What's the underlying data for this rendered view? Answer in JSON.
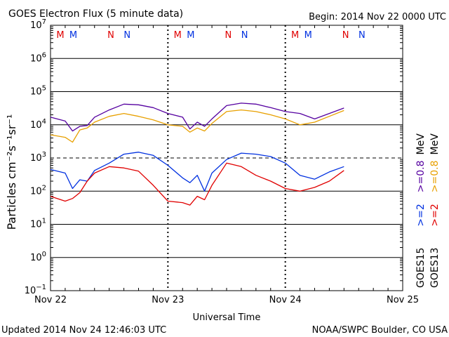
{
  "title": "GOES Electron Flux (5 minute data)",
  "begin": "Begin: 2014 Nov 22 0000 UTC",
  "updated": "Updated 2014 Nov 24 12:46:03 UTC",
  "credit": "NOAA/SWPC Boulder, CO USA",
  "colors": {
    "goes15_low": "#5500a0",
    "goes13_low": "#e8a000",
    "goes15_high": "#0030e0",
    "goes13_high": "#e00000",
    "marker_m": "#e00000",
    "marker_n": "#0030e0"
  },
  "chart_data": {
    "type": "line",
    "title": "GOES Electron Flux (5 minute data)",
    "xlabel": "Universal Time",
    "ylabel": "Particles cm⁻²s⁻¹sr⁻¹",
    "y_scale": "log",
    "ylim": [
      0.1,
      10000000
    ],
    "xlim": [
      "2014-11-22 00:00",
      "2014-11-25 00:00"
    ],
    "x_ticks": [
      "Nov 22",
      "Nov 23",
      "Nov 24",
      "Nov 25"
    ],
    "y_ticks": [
      {
        "base": "10",
        "exp": "7"
      },
      {
        "base": "10",
        "exp": "6"
      },
      {
        "base": "10",
        "exp": "5"
      },
      {
        "base": "10",
        "exp": "4"
      },
      {
        "base": "10",
        "exp": "3"
      },
      {
        "base": "10",
        "exp": "2"
      },
      {
        "base": "10",
        "exp": "1"
      },
      {
        "base": "10",
        "exp": "0"
      },
      {
        "base": "10",
        "exp": "−1"
      }
    ],
    "alert_threshold": 1000,
    "markers": [
      {
        "label": "M",
        "time": "2014-11-22 02:00",
        "color": "marker_m"
      },
      {
        "label": "M",
        "time": "2014-11-22 04:40",
        "color": "marker_n"
      },
      {
        "label": "N",
        "time": "2014-11-22 12:20",
        "color": "marker_m"
      },
      {
        "label": "N",
        "time": "2014-11-22 15:40",
        "color": "marker_n"
      },
      {
        "label": "M",
        "time": "2014-11-23 02:00",
        "color": "marker_m"
      },
      {
        "label": "M",
        "time": "2014-11-23 04:40",
        "color": "marker_n"
      },
      {
        "label": "N",
        "time": "2014-11-23 12:20",
        "color": "marker_m"
      },
      {
        "label": "N",
        "time": "2014-11-23 15:40",
        "color": "marker_n"
      },
      {
        "label": "M",
        "time": "2014-11-24 02:00",
        "color": "marker_m"
      },
      {
        "label": "M",
        "time": "2014-11-24 04:40",
        "color": "marker_n"
      },
      {
        "label": "N",
        "time": "2014-11-24 12:20",
        "color": "marker_m"
      },
      {
        "label": "N",
        "time": "2014-11-24 15:40",
        "color": "marker_n"
      }
    ],
    "legend": [
      {
        "sat": "GOES15",
        "energy": ">=2",
        "energy2": ">=0.8",
        "unit": "MeV"
      },
      {
        "sat": "GOES13",
        "energy": ">=2",
        "energy2": ">=0.8",
        "unit": "MeV"
      }
    ],
    "series": [
      {
        "color": "goes15_low",
        "x": [
          "2014-11-22 00:00",
          "2014-11-22 03:00",
          "2014-11-22 04:30",
          "2014-11-22 06:00",
          "2014-11-22 07:30",
          "2014-11-22 09:00",
          "2014-11-22 12:00",
          "2014-11-22 15:00",
          "2014-11-22 18:00",
          "2014-11-22 21:00",
          "2014-11-23 00:00",
          "2014-11-23 03:00",
          "2014-11-23 04:30",
          "2014-11-23 06:00",
          "2014-11-23 07:30",
          "2014-11-23 09:00",
          "2014-11-23 12:00",
          "2014-11-23 15:00",
          "2014-11-23 18:00",
          "2014-11-23 21:00",
          "2014-11-24 00:00",
          "2014-11-24 03:00",
          "2014-11-24 06:00",
          "2014-11-24 09:00",
          "2014-11-24 12:00"
        ],
        "y": [
          17000,
          13000,
          6500,
          9000,
          9500,
          17000,
          28000,
          42000,
          40000,
          33000,
          22000,
          17000,
          7500,
          12000,
          9000,
          15000,
          38000,
          45000,
          42000,
          33000,
          25000,
          22000,
          15000,
          22000,
          32000
        ]
      },
      {
        "color": "goes13_low",
        "x": [
          "2014-11-22 00:00",
          "2014-11-22 03:00",
          "2014-11-22 04:30",
          "2014-11-22 06:00",
          "2014-11-22 07:30",
          "2014-11-22 09:00",
          "2014-11-22 12:00",
          "2014-11-22 15:00",
          "2014-11-22 18:00",
          "2014-11-22 21:00",
          "2014-11-23 00:00",
          "2014-11-23 03:00",
          "2014-11-23 04:30",
          "2014-11-23 06:00",
          "2014-11-23 07:30",
          "2014-11-23 09:00",
          "2014-11-23 12:00",
          "2014-11-23 15:00",
          "2014-11-23 18:00",
          "2014-11-23 21:00",
          "2014-11-24 00:00",
          "2014-11-24 03:00",
          "2014-11-24 06:00",
          "2014-11-24 09:00",
          "2014-11-24 12:00"
        ],
        "y": [
          5000,
          4200,
          3000,
          7000,
          8000,
          12000,
          18000,
          22000,
          18000,
          14000,
          10000,
          9000,
          6000,
          8000,
          6500,
          11000,
          25000,
          28000,
          25000,
          20000,
          15000,
          10000,
          12000,
          18000,
          27000
        ]
      },
      {
        "color": "goes15_high",
        "x": [
          "2014-11-22 00:00",
          "2014-11-22 03:00",
          "2014-11-22 04:30",
          "2014-11-22 06:00",
          "2014-11-22 07:30",
          "2014-11-22 09:00",
          "2014-11-22 12:00",
          "2014-11-22 15:00",
          "2014-11-22 18:00",
          "2014-11-22 21:00",
          "2014-11-23 00:00",
          "2014-11-23 03:00",
          "2014-11-23 04:30",
          "2014-11-23 06:00",
          "2014-11-23 07:30",
          "2014-11-23 09:00",
          "2014-11-23 12:00",
          "2014-11-23 15:00",
          "2014-11-23 18:00",
          "2014-11-23 21:00",
          "2014-11-24 00:00",
          "2014-11-24 03:00",
          "2014-11-24 06:00",
          "2014-11-24 09:00",
          "2014-11-24 12:00"
        ],
        "y": [
          450,
          350,
          120,
          220,
          200,
          420,
          700,
          1300,
          1500,
          1200,
          600,
          250,
          180,
          300,
          100,
          350,
          900,
          1400,
          1300,
          1100,
          700,
          300,
          230,
          380,
          550
        ]
      },
      {
        "color": "goes13_high",
        "x": [
          "2014-11-22 00:00",
          "2014-11-22 03:00",
          "2014-11-22 04:30",
          "2014-11-22 06:00",
          "2014-11-22 07:30",
          "2014-11-22 09:00",
          "2014-11-22 12:00",
          "2014-11-22 15:00",
          "2014-11-22 18:00",
          "2014-11-22 21:00",
          "2014-11-23 00:00",
          "2014-11-23 03:00",
          "2014-11-23 04:30",
          "2014-11-23 06:00",
          "2014-11-23 07:30",
          "2014-11-23 09:00",
          "2014-11-23 12:00",
          "2014-11-23 15:00",
          "2014-11-23 18:00",
          "2014-11-23 21:00",
          "2014-11-24 00:00",
          "2014-11-24 03:00",
          "2014-11-24 06:00",
          "2014-11-24 09:00",
          "2014-11-24 12:00"
        ],
        "y": [
          70,
          50,
          60,
          90,
          200,
          350,
          550,
          500,
          400,
          150,
          50,
          45,
          38,
          70,
          55,
          150,
          700,
          550,
          300,
          200,
          120,
          100,
          130,
          200,
          420
        ]
      }
    ]
  }
}
